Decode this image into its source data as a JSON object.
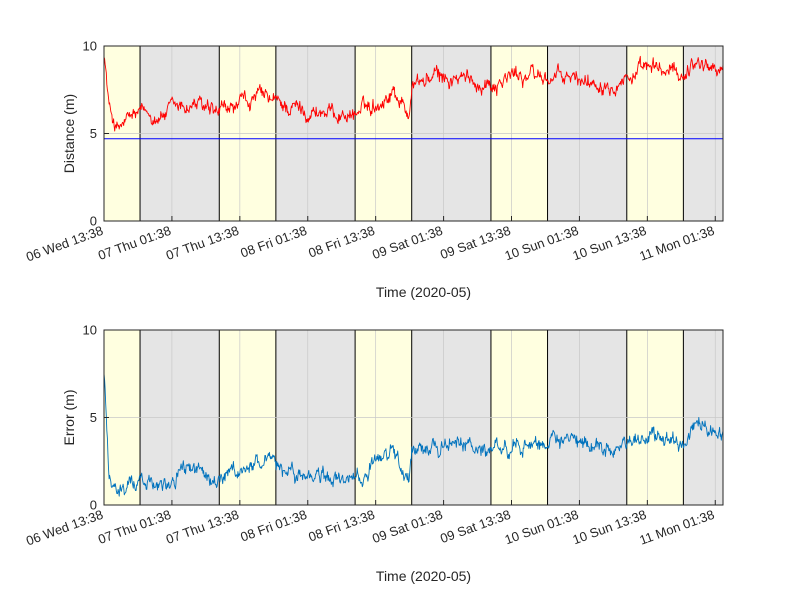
{
  "colors": {
    "day_band": "#ffffe0",
    "night_band": "#e5e5e5",
    "grid": "#c8c8c8",
    "axis": "#262626",
    "distance_series": "#ff0000",
    "distance_series_alt": "#e63312",
    "error_series": "#0072bd",
    "error_series_alt": "#1a8fc4",
    "reference_line": "#0000ff"
  },
  "chart_data": [
    {
      "type": "line",
      "xlabel": "Time (2020-05)",
      "ylabel": "Distance (m)",
      "ylim": [
        0,
        10
      ],
      "yticks": [
        "0",
        "5",
        "10"
      ],
      "xlim": [
        "2020-05-06 13:38",
        "2020-05-11 03:00"
      ],
      "xtick_labels": [
        "06 Wed 13:38",
        "07 Thu 01:38",
        "07 Thu 13:38",
        "08 Fri 01:38",
        "08 Fri 13:38",
        "09 Sat 01:38",
        "09 Sat 13:38",
        "10 Sun 01:38",
        "10 Sun 13:38",
        "11 Mon 01:38"
      ],
      "grid": true,
      "reference_line": 4.7,
      "bands": [
        {
          "start": "2020-05-06 13:38",
          "end": "2020-05-06 20:00",
          "kind": "day"
        },
        {
          "start": "2020-05-06 20:00",
          "end": "2020-05-07 10:00",
          "kind": "night"
        },
        {
          "start": "2020-05-07 10:00",
          "end": "2020-05-07 20:00",
          "kind": "day"
        },
        {
          "start": "2020-05-07 20:00",
          "end": "2020-05-08 10:00",
          "kind": "night"
        },
        {
          "start": "2020-05-08 10:00",
          "end": "2020-05-08 20:00",
          "kind": "day"
        },
        {
          "start": "2020-05-08 20:00",
          "end": "2020-05-09 10:00",
          "kind": "night"
        },
        {
          "start": "2020-05-09 10:00",
          "end": "2020-05-09 20:00",
          "kind": "day"
        },
        {
          "start": "2020-05-09 20:00",
          "end": "2020-05-10 10:00",
          "kind": "night"
        },
        {
          "start": "2020-05-10 10:00",
          "end": "2020-05-10 20:00",
          "kind": "day"
        },
        {
          "start": "2020-05-10 20:00",
          "end": "2020-05-11 03:00",
          "kind": "night"
        }
      ],
      "series": [
        {
          "x": [
            "2020-05-06 13:38",
            "2020-05-06 14:30",
            "2020-05-06 16:00",
            "2020-05-06 19:00",
            "2020-05-07 00:00",
            "2020-05-07 06:00",
            "2020-05-07 09:00",
            "2020-05-07 12:00",
            "2020-05-07 17:00",
            "2020-05-07 20:00",
            "2020-05-08 02:00",
            "2020-05-08 08:00",
            "2020-05-08 10:30",
            "2020-05-08 14:00",
            "2020-05-08 17:00",
            "2020-05-08 19:30",
            "2020-05-08 20:00",
            "2020-05-09 00:00",
            "2020-05-09 06:00",
            "2020-05-09 10:00",
            "2020-05-09 15:00",
            "2020-05-09 20:00",
            "2020-05-10 04:00",
            "2020-05-10 10:00",
            "2020-05-10 15:00",
            "2020-05-10 20:00",
            "2020-05-10 22:00",
            "2020-05-11 03:00"
          ],
          "values": [
            9.8,
            6.5,
            5.2,
            6.0,
            6.1,
            6.7,
            5.9,
            6.3,
            7.1,
            6.7,
            6.3,
            6.1,
            6.2,
            6.8,
            7.5,
            6.0,
            7.8,
            8.2,
            8.0,
            7.9,
            8.4,
            8.2,
            8.0,
            8.3,
            8.6,
            8.4,
            9.2,
            8.6
          ]
        }
      ]
    },
    {
      "type": "line",
      "xlabel": "Time (2020-05)",
      "ylabel": "Error (m)",
      "ylim": [
        0,
        10
      ],
      "yticks": [
        "0",
        "5",
        "10"
      ],
      "xlim": [
        "2020-05-06 13:38",
        "2020-05-11 03:00"
      ],
      "xtick_labels": [
        "06 Wed 13:38",
        "07 Thu 01:38",
        "07 Thu 13:38",
        "08 Fri 01:38",
        "08 Fri 13:38",
        "09 Sat 01:38",
        "09 Sat 13:38",
        "10 Sun 01:38",
        "10 Sun 13:38",
        "11 Mon 01:38"
      ],
      "grid": true,
      "bands": [
        {
          "start": "2020-05-06 13:38",
          "end": "2020-05-06 20:00",
          "kind": "day"
        },
        {
          "start": "2020-05-06 20:00",
          "end": "2020-05-07 10:00",
          "kind": "night"
        },
        {
          "start": "2020-05-07 10:00",
          "end": "2020-05-07 20:00",
          "kind": "day"
        },
        {
          "start": "2020-05-07 20:00",
          "end": "2020-05-08 10:00",
          "kind": "night"
        },
        {
          "start": "2020-05-08 10:00",
          "end": "2020-05-08 20:00",
          "kind": "day"
        },
        {
          "start": "2020-05-08 20:00",
          "end": "2020-05-09 10:00",
          "kind": "night"
        },
        {
          "start": "2020-05-09 10:00",
          "end": "2020-05-09 20:00",
          "kind": "day"
        },
        {
          "start": "2020-05-09 20:00",
          "end": "2020-05-10 10:00",
          "kind": "night"
        },
        {
          "start": "2020-05-10 10:00",
          "end": "2020-05-10 20:00",
          "kind": "day"
        },
        {
          "start": "2020-05-10 20:00",
          "end": "2020-05-11 03:00",
          "kind": "night"
        }
      ],
      "series": [
        {
          "x": [
            "2020-05-06 13:38",
            "2020-05-06 14:30",
            "2020-05-06 16:00",
            "2020-05-06 19:00",
            "2020-05-07 00:00",
            "2020-05-07 06:00",
            "2020-05-07 09:00",
            "2020-05-07 12:00",
            "2020-05-07 17:00",
            "2020-05-07 20:00",
            "2020-05-08 02:00",
            "2020-05-08 08:00",
            "2020-05-08 10:30",
            "2020-05-08 14:00",
            "2020-05-08 17:00",
            "2020-05-08 19:30",
            "2020-05-08 20:00",
            "2020-05-09 00:00",
            "2020-05-09 06:00",
            "2020-05-09 10:00",
            "2020-05-09 15:00",
            "2020-05-09 20:00",
            "2020-05-10 04:00",
            "2020-05-10 10:00",
            "2020-05-10 15:00",
            "2020-05-10 20:00",
            "2020-05-10 22:00",
            "2020-05-11 03:00"
          ],
          "values": [
            7.6,
            2.0,
            0.6,
            1.3,
            1.4,
            2.1,
            1.2,
            1.6,
            2.5,
            2.1,
            1.6,
            1.4,
            1.5,
            2.2,
            3.0,
            1.0,
            3.2,
            3.5,
            3.3,
            3.1,
            3.7,
            3.5,
            3.3,
            3.6,
            3.9,
            3.7,
            4.5,
            3.8
          ]
        }
      ]
    }
  ]
}
